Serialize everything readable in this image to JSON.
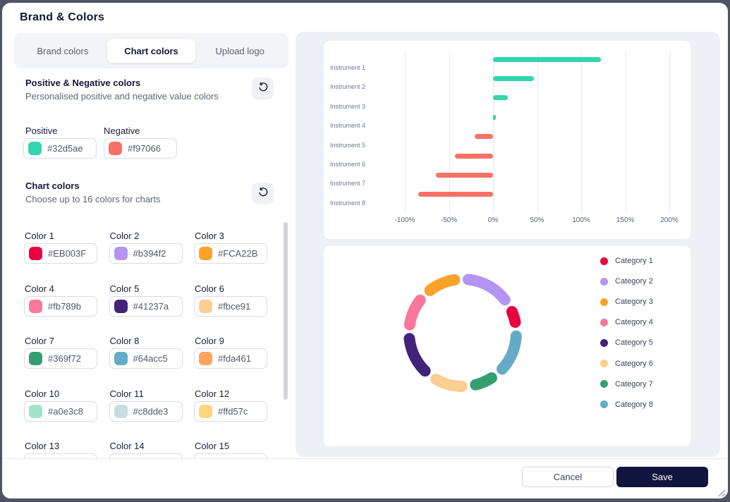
{
  "window": {
    "title": "Brand & Colors"
  },
  "tabs": [
    {
      "label": "Brand colors",
      "active": false
    },
    {
      "label": "Chart colors",
      "active": true
    },
    {
      "label": "Upload logo",
      "active": false
    }
  ],
  "sections": {
    "posneg": {
      "title": "Positive & Negative colors",
      "subtitle": "Personalised positive and negative value colors",
      "reset_icon": "rotate-ccw-icon",
      "positive": {
        "label": "Positive",
        "hex": "#32d5ae"
      },
      "negative": {
        "label": "Negative",
        "hex": "#f97066"
      }
    },
    "chart_colors": {
      "title": "Chart colors",
      "subtitle": "Choose up to 16 colors for charts",
      "reset_icon": "rotate-ccw-icon",
      "colors": [
        {
          "label": "Color 1",
          "hex": "#EB003F"
        },
        {
          "label": "Color 2",
          "hex": "#b394f2"
        },
        {
          "label": "Color 3",
          "hex": "#FCA22B"
        },
        {
          "label": "Color 4",
          "hex": "#fb789b"
        },
        {
          "label": "Color 5",
          "hex": "#41237a"
        },
        {
          "label": "Color 6",
          "hex": "#fbce91"
        },
        {
          "label": "Color 7",
          "hex": "#369f72"
        },
        {
          "label": "Color 8",
          "hex": "#64acc5"
        },
        {
          "label": "Color 9",
          "hex": "#fda461"
        },
        {
          "label": "Color 10",
          "hex": "#a0e3c8"
        },
        {
          "label": "Color 11",
          "hex": "#c8dde3"
        },
        {
          "label": "Color 12",
          "hex": "#ffd57c"
        },
        {
          "label": "Color 13",
          "hex": ""
        },
        {
          "label": "Color 14",
          "hex": ""
        },
        {
          "label": "Color 15",
          "hex": ""
        }
      ]
    }
  },
  "footer": {
    "cancel_label": "Cancel",
    "save_label": "Save"
  },
  "chart_data": [
    {
      "type": "bar",
      "orientation": "horizontal",
      "title": "",
      "categories": [
        "Instrument 1",
        "Instrument 2",
        "Instrument 3",
        "Instrument 4",
        "Instrument 5",
        "Instrument 6",
        "Instrument 7",
        "Instrument 8"
      ],
      "values": [
        122,
        46,
        17,
        3,
        -21,
        -43,
        -65,
        -85
      ],
      "unit": "%",
      "xticks": [
        -100,
        -50,
        0,
        50,
        100,
        150,
        200
      ],
      "xtick_labels": [
        "-100%",
        "-50%",
        "0%",
        "50%",
        "100%",
        "150%",
        "200%"
      ],
      "xlim": [
        -150,
        225
      ],
      "grid": true,
      "positive_color": "#32d5ae",
      "negative_color": "#f97066"
    },
    {
      "type": "pie",
      "donut": true,
      "labels": [
        "Category 1",
        "Category 2",
        "Category 3",
        "Category 4",
        "Category 5",
        "Category 6",
        "Category 7",
        "Category 8"
      ],
      "values": [
        7,
        17,
        12,
        12,
        15,
        12,
        9,
        15
      ],
      "colors": [
        "#EB003F",
        "#b394f2",
        "#FCA22B",
        "#fb789b",
        "#41237a",
        "#fbce91",
        "#369f72",
        "#64acc5"
      ],
      "draw_order": [
        2,
        1,
        8,
        7,
        6,
        5,
        4,
        3
      ],
      "legend_position": "right"
    }
  ]
}
